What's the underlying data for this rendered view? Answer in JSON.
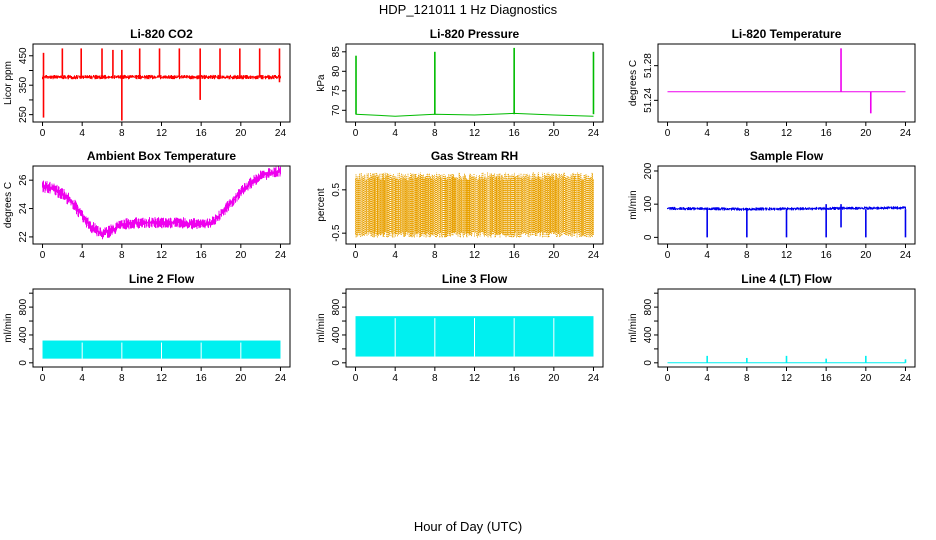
{
  "figure": {
    "title": "HDP_121011  1 Hz Diagnostics",
    "xlabel": "Hour of Day (UTC)"
  },
  "chart_data": [
    {
      "type": "line",
      "title": "Li-820 CO2",
      "ylabel": "Licor ppm",
      "color": "#ff0000",
      "xlim": [
        0,
        24
      ],
      "ylim": [
        225,
        490
      ],
      "xticks": [
        "0",
        "4",
        "8",
        "12",
        "16",
        "20",
        "24"
      ],
      "yticks": [
        250,
        300,
        350,
        400,
        450
      ],
      "ytick_labels": [
        "250",
        "",
        "350",
        "",
        "450"
      ],
      "series": [
        {
          "style": "band",
          "x": [
            0,
            24
          ],
          "low": [
            370,
            370
          ],
          "high": [
            385,
            385
          ]
        }
      ],
      "events": [
        {
          "x": 0.1,
          "y0": 240,
          "y1": 460
        },
        {
          "x": 2.0,
          "y0": 380,
          "y1": 475
        },
        {
          "x": 3.9,
          "y0": 380,
          "y1": 475
        },
        {
          "x": 6.0,
          "y0": 380,
          "y1": 475
        },
        {
          "x": 7.1,
          "y0": 380,
          "y1": 470
        },
        {
          "x": 8.0,
          "y0": 230,
          "y1": 470
        },
        {
          "x": 9.8,
          "y0": 380,
          "y1": 475
        },
        {
          "x": 11.8,
          "y0": 380,
          "y1": 475
        },
        {
          "x": 13.8,
          "y0": 380,
          "y1": 475
        },
        {
          "x": 15.9,
          "y0": 300,
          "y1": 475
        },
        {
          "x": 17.9,
          "y0": 380,
          "y1": 475
        },
        {
          "x": 19.9,
          "y0": 380,
          "y1": 475
        },
        {
          "x": 21.9,
          "y0": 380,
          "y1": 475
        },
        {
          "x": 23.9,
          "y0": 360,
          "y1": 475
        }
      ]
    },
    {
      "type": "line",
      "title": "Li-820 Pressure",
      "ylabel": "kPa",
      "color": "#00bb00",
      "xlim": [
        0,
        24
      ],
      "ylim": [
        67,
        87
      ],
      "xticks": [
        "0",
        "4",
        "8",
        "12",
        "16",
        "20",
        "24"
      ],
      "yticks": [
        70,
        75,
        80,
        85
      ],
      "ytick_labels": [
        "70",
        "75",
        "80",
        "85"
      ],
      "series": [
        {
          "style": "line",
          "x": [
            0,
            4,
            8,
            12,
            16,
            20,
            24
          ],
          "y": [
            69,
            68.5,
            69,
            68.8,
            69.2,
            68.8,
            68.5
          ]
        }
      ],
      "events": [
        {
          "x": 0.05,
          "y0": 69,
          "y1": 84
        },
        {
          "x": 8.0,
          "y0": 69,
          "y1": 85
        },
        {
          "x": 16.0,
          "y0": 69,
          "y1": 86
        },
        {
          "x": 24.0,
          "y0": 69,
          "y1": 85
        }
      ]
    },
    {
      "type": "line",
      "title": "Li-820 Temperature",
      "ylabel": "degrees C",
      "color": "#ee00ee",
      "xlim": [
        0,
        24
      ],
      "ylim": [
        51.215,
        51.305
      ],
      "xticks": [
        "0",
        "4",
        "8",
        "12",
        "16",
        "20",
        "24"
      ],
      "yticks": [
        51.24,
        51.28
      ],
      "ytick_labels": [
        "51.24",
        "51.28"
      ],
      "series": [
        {
          "style": "line",
          "x": [
            0,
            24
          ],
          "y": [
            51.25,
            51.25
          ]
        }
      ],
      "events": [
        {
          "x": 17.5,
          "y0": 51.25,
          "y1": 51.3
        },
        {
          "x": 20.5,
          "y0": 51.225,
          "y1": 51.25
        }
      ]
    },
    {
      "type": "line",
      "title": "Ambient Box Temperature",
      "ylabel": "degrees C",
      "color": "#ee00ee",
      "xlim": [
        0,
        24
      ],
      "ylim": [
        21.5,
        27
      ],
      "xticks": [
        "0",
        "4",
        "8",
        "12",
        "16",
        "20",
        "24"
      ],
      "yticks": [
        22,
        24,
        26
      ],
      "ytick_labels": [
        "22",
        "24",
        "26"
      ],
      "series": [
        {
          "style": "band",
          "x": [
            0,
            1,
            2,
            3,
            4,
            5,
            6,
            7,
            8,
            10,
            12,
            14,
            16,
            17,
            18,
            19,
            20,
            21,
            22,
            23,
            24
          ],
          "low": [
            25.1,
            25.0,
            24.6,
            24.0,
            23.0,
            22.2,
            21.8,
            22.0,
            22.5,
            22.6,
            22.6,
            22.6,
            22.5,
            22.6,
            23.2,
            24.0,
            24.8,
            25.4,
            25.9,
            26.1,
            26.2
          ],
          "high": [
            26.0,
            25.9,
            25.5,
            24.9,
            23.9,
            23.1,
            22.7,
            22.9,
            23.3,
            23.4,
            23.4,
            23.4,
            23.3,
            23.4,
            24.0,
            24.8,
            25.6,
            26.2,
            26.7,
            26.9,
            27.0
          ]
        }
      ],
      "events": []
    },
    {
      "type": "line",
      "title": "Gas Stream RH",
      "ylabel": "percent",
      "color": "#e8a000",
      "xlim": [
        0,
        24
      ],
      "ylim": [
        -0.75,
        1.05
      ],
      "xticks": [
        "0",
        "4",
        "8",
        "12",
        "16",
        "20",
        "24"
      ],
      "yticks": [
        -0.5,
        0.5
      ],
      "ytick_labels": [
        "-0.5",
        "0.5"
      ],
      "series": [
        {
          "style": "noise",
          "x": [
            0,
            24
          ],
          "low": [
            -0.6,
            -0.6
          ],
          "high": [
            0.9,
            0.9
          ]
        }
      ],
      "events": []
    },
    {
      "type": "line",
      "title": "Sample Flow",
      "ylabel": "ml/min",
      "color": "#0000ee",
      "xlim": [
        0,
        24
      ],
      "ylim": [
        -20,
        215
      ],
      "xticks": [
        "0",
        "4",
        "8",
        "12",
        "16",
        "20",
        "24"
      ],
      "yticks": [
        0,
        100,
        200
      ],
      "ytick_labels": [
        "0",
        "100",
        "200"
      ],
      "series": [
        {
          "style": "band",
          "x": [
            0,
            8,
            16,
            24
          ],
          "low": [
            82,
            80,
            82,
            84
          ],
          "high": [
            92,
            90,
            92,
            94
          ]
        }
      ],
      "events": [
        {
          "x": 4.0,
          "y0": 0,
          "y1": 85
        },
        {
          "x": 8.0,
          "y0": 0,
          "y1": 85
        },
        {
          "x": 12.0,
          "y0": 0,
          "y1": 85
        },
        {
          "x": 16.0,
          "y0": 0,
          "y1": 100
        },
        {
          "x": 17.5,
          "y0": 30,
          "y1": 100
        },
        {
          "x": 20.0,
          "y0": 0,
          "y1": 85
        },
        {
          "x": 24.0,
          "y0": 0,
          "y1": 85
        }
      ]
    },
    {
      "type": "line",
      "title": "Line 2 Flow",
      "ylabel": "ml/min",
      "color": "#00f0f0",
      "xlim": [
        0,
        24
      ],
      "ylim": [
        -60,
        1060
      ],
      "xticks": [
        "0",
        "4",
        "8",
        "12",
        "16",
        "20",
        "24"
      ],
      "yticks": [
        0,
        200,
        400,
        600,
        800,
        1000
      ],
      "ytick_labels": [
        "0",
        "",
        "400",
        "",
        "800",
        ""
      ],
      "series": [
        {
          "style": "block",
          "x": [
            0,
            24
          ],
          "low": [
            60,
            60
          ],
          "high": [
            320,
            320
          ]
        }
      ],
      "events": []
    },
    {
      "type": "line",
      "title": "Line 3 Flow",
      "ylabel": "ml/min",
      "color": "#00f0f0",
      "xlim": [
        0,
        24
      ],
      "ylim": [
        -60,
        1060
      ],
      "xticks": [
        "0",
        "4",
        "8",
        "12",
        "16",
        "20",
        "24"
      ],
      "yticks": [
        0,
        200,
        400,
        600,
        800,
        1000
      ],
      "ytick_labels": [
        "0",
        "",
        "400",
        "",
        "800",
        ""
      ],
      "series": [
        {
          "style": "block",
          "x": [
            0,
            24
          ],
          "low": [
            90,
            90
          ],
          "high": [
            670,
            670
          ]
        }
      ],
      "events": []
    },
    {
      "type": "line",
      "title": "Line 4 (LT) Flow",
      "ylabel": "ml/min",
      "color": "#00f0f0",
      "xlim": [
        0,
        24
      ],
      "ylim": [
        -60,
        1060
      ],
      "xticks": [
        "0",
        "4",
        "8",
        "12",
        "16",
        "20",
        "24"
      ],
      "yticks": [
        0,
        200,
        400,
        600,
        800,
        1000
      ],
      "ytick_labels": [
        "0",
        "",
        "400",
        "",
        "800",
        ""
      ],
      "series": [
        {
          "style": "line",
          "x": [
            0,
            24
          ],
          "y": [
            0,
            0
          ]
        }
      ],
      "events": [
        {
          "x": 4.0,
          "y0": 0,
          "y1": 100
        },
        {
          "x": 8.0,
          "y0": 0,
          "y1": 70
        },
        {
          "x": 12.0,
          "y0": 0,
          "y1": 100
        },
        {
          "x": 16.0,
          "y0": 0,
          "y1": 60
        },
        {
          "x": 20.0,
          "y0": 0,
          "y1": 100
        },
        {
          "x": 24.0,
          "y0": 0,
          "y1": 50
        }
      ]
    }
  ]
}
